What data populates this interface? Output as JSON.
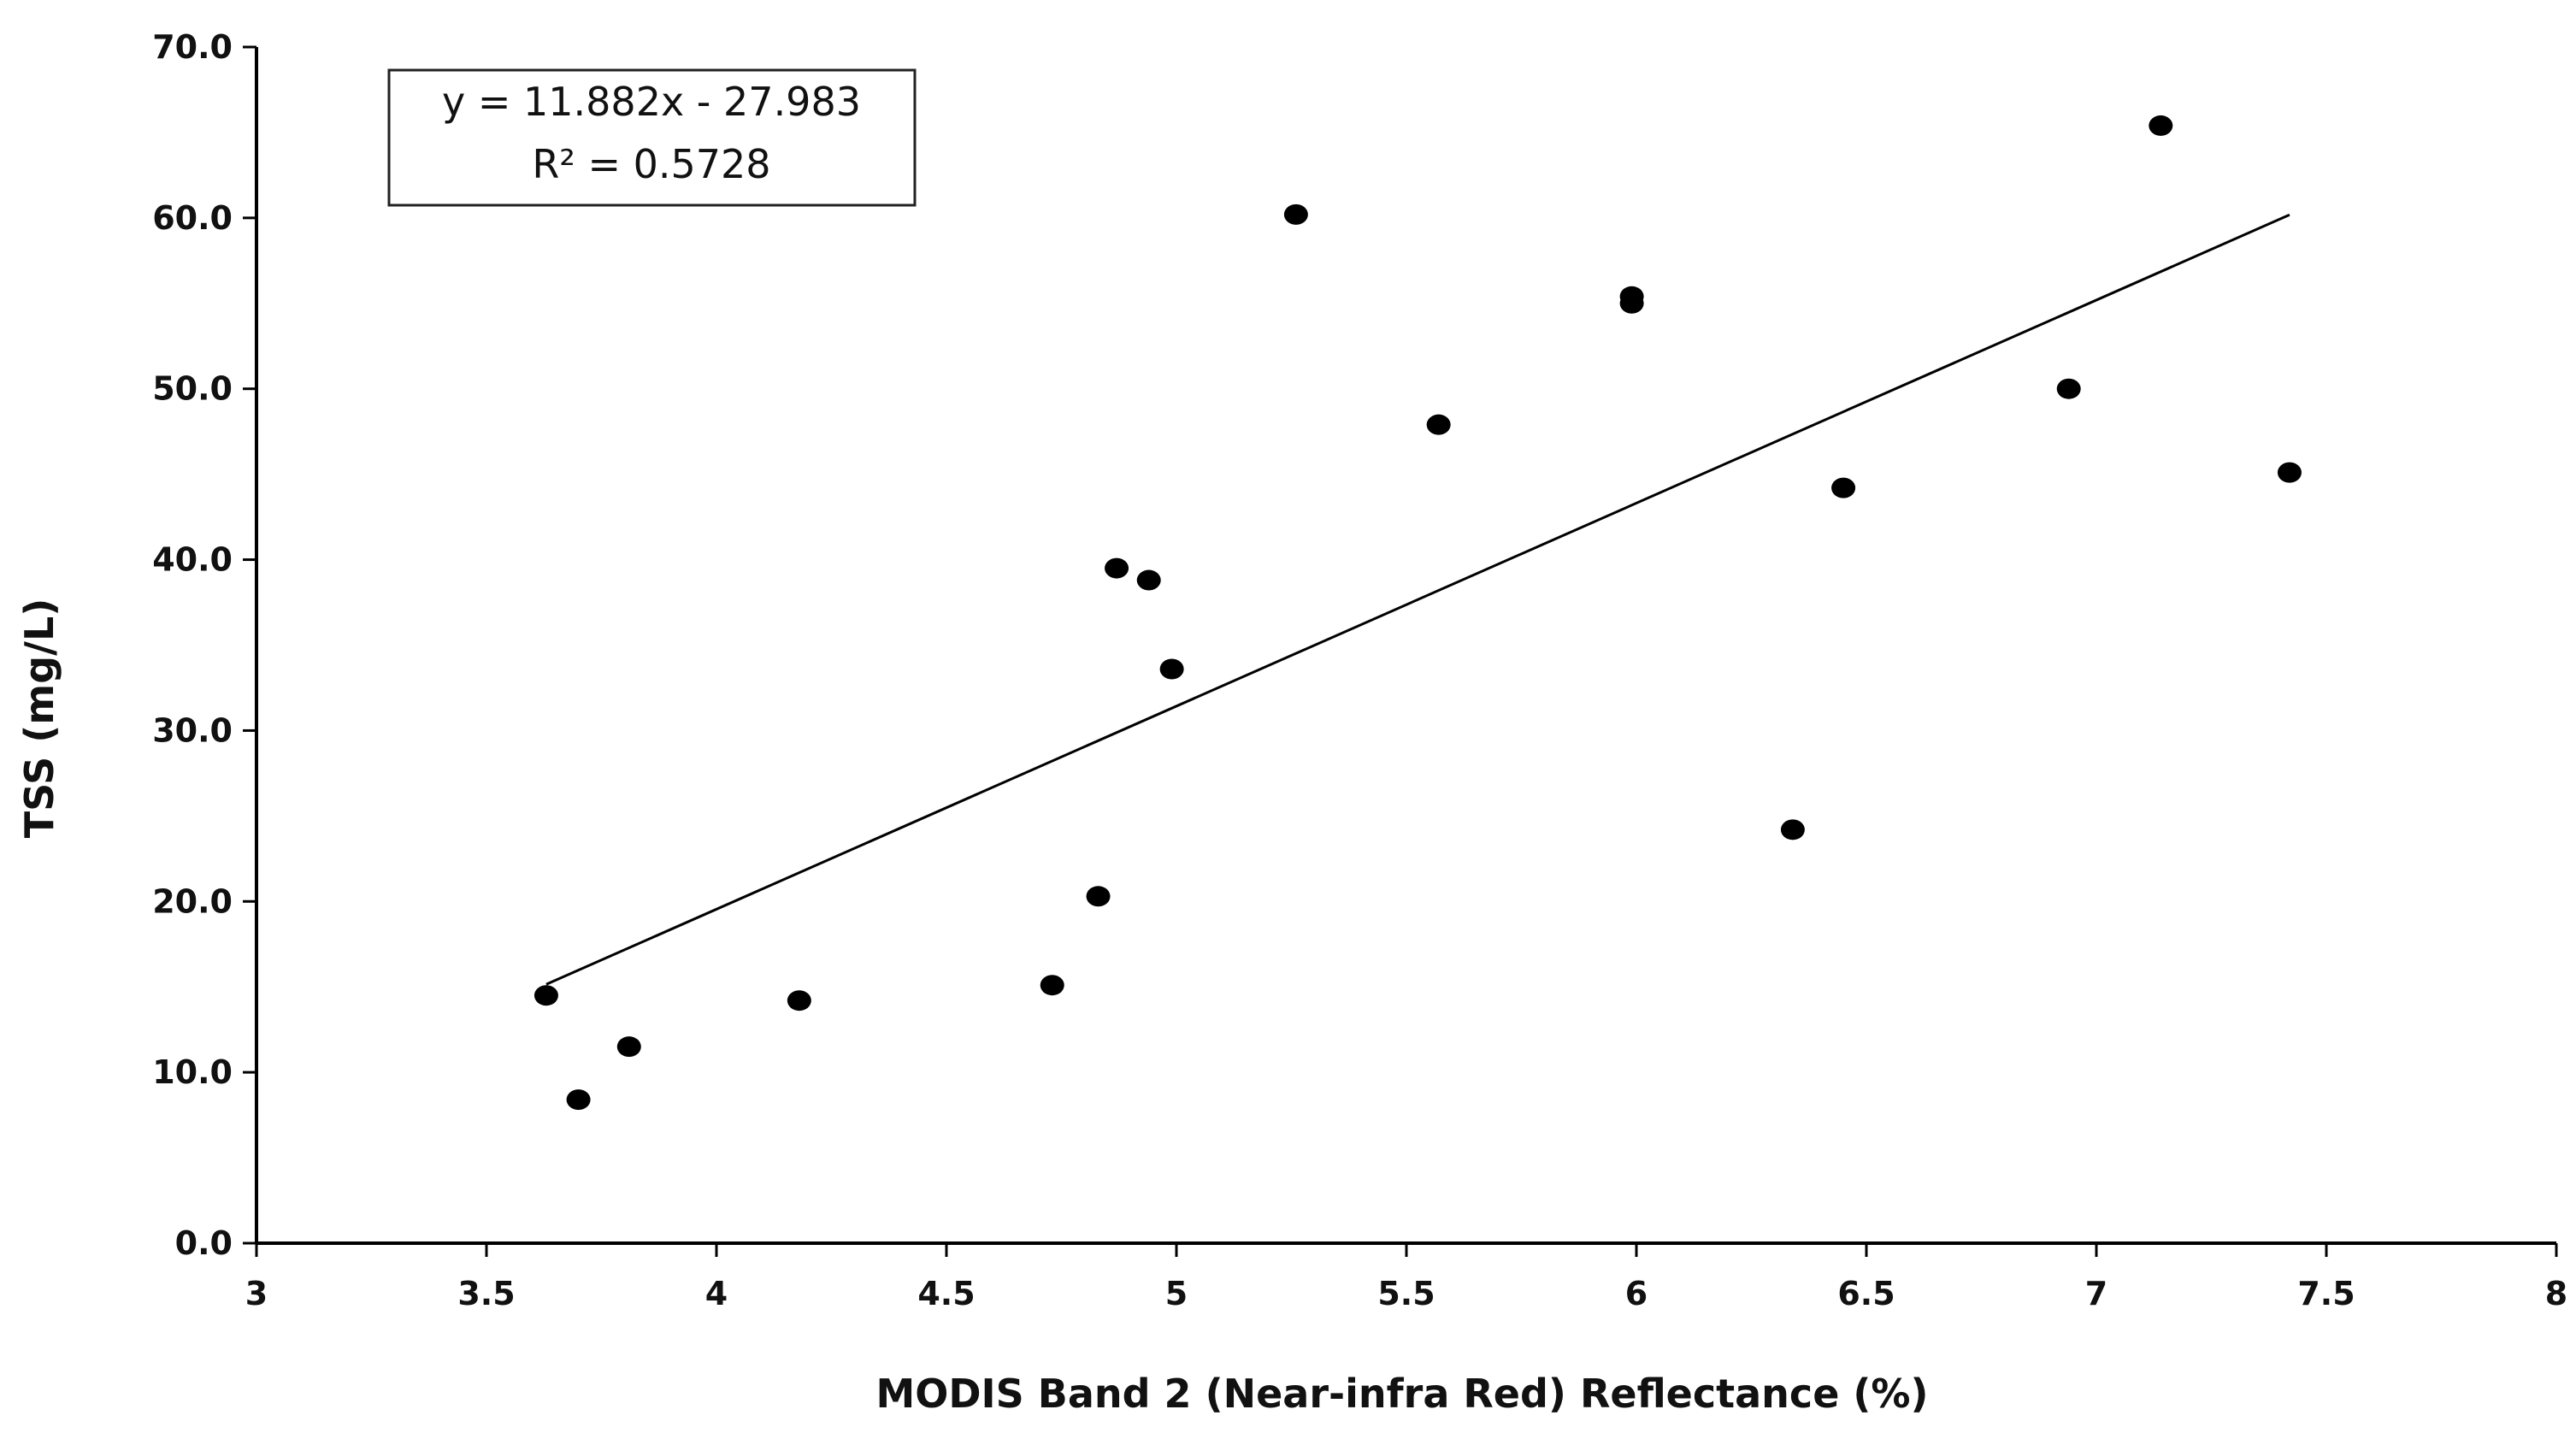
{
  "chart_data": {
    "type": "scatter",
    "title": "",
    "xlabel": "MODIS Band 2 (Near-infra Red) Reflectance (%)",
    "ylabel": "TSS (mg/L)",
    "xlim": [
      3,
      8
    ],
    "ylim": [
      0,
      70
    ],
    "x_ticks": [
      "3",
      "3.5",
      "4",
      "4.5",
      "5",
      "5.5",
      "6",
      "6.5",
      "7",
      "7.5",
      "8"
    ],
    "y_ticks": [
      "0.0",
      "10.0",
      "20.0",
      "30.0",
      "40.0",
      "50.0",
      "60.0",
      "70.0"
    ],
    "grid": false,
    "legend": "none",
    "points": [
      {
        "x": 3.63,
        "y": 14.5
      },
      {
        "x": 3.7,
        "y": 8.4
      },
      {
        "x": 3.81,
        "y": 11.5
      },
      {
        "x": 4.18,
        "y": 14.2
      },
      {
        "x": 4.73,
        "y": 15.1
      },
      {
        "x": 4.83,
        "y": 20.3
      },
      {
        "x": 4.87,
        "y": 39.5
      },
      {
        "x": 4.94,
        "y": 38.8
      },
      {
        "x": 4.99,
        "y": 33.6
      },
      {
        "x": 5.26,
        "y": 60.2
      },
      {
        "x": 5.57,
        "y": 47.9
      },
      {
        "x": 5.99,
        "y": 55.4
      },
      {
        "x": 5.99,
        "y": 55.0
      },
      {
        "x": 6.34,
        "y": 24.2
      },
      {
        "x": 6.45,
        "y": 44.2
      },
      {
        "x": 6.94,
        "y": 50.0
      },
      {
        "x": 7.14,
        "y": 65.4
      },
      {
        "x": 7.42,
        "y": 45.1
      }
    ],
    "trendline": {
      "slope": 11.882,
      "intercept": -27.983,
      "x_range": [
        3.63,
        7.42
      ],
      "equation": "y = 11.882x - 27.983",
      "r2": "R² = 0.5728"
    },
    "colors": {
      "points": "#000000",
      "line": "#000000",
      "axis": "#000000",
      "text": "#111111"
    }
  }
}
